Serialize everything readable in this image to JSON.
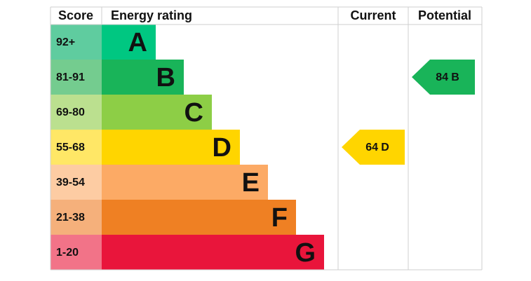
{
  "header": {
    "score": "Score",
    "rating": "Energy rating",
    "current": "Current",
    "potential": "Potential"
  },
  "rows": [
    {
      "score": "92+",
      "band": "A",
      "color": "#00c781",
      "light": "#5fcc9f"
    },
    {
      "score": "81-91",
      "band": "B",
      "color": "#19b459",
      "light": "#74cc8f"
    },
    {
      "score": "69-80",
      "band": "C",
      "color": "#8dce46",
      "light": "#bbe08f"
    },
    {
      "score": "55-68",
      "band": "D",
      "color": "#ffd500",
      "light": "#ffe766"
    },
    {
      "score": "39-54",
      "band": "E",
      "color": "#fcaa65",
      "light": "#fdcca3"
    },
    {
      "score": "21-38",
      "band": "F",
      "color": "#ef8023",
      "light": "#f5b07b"
    },
    {
      "score": "1-20",
      "band": "G",
      "color": "#e9153b",
      "light": "#f27388"
    }
  ],
  "current": {
    "value": 64,
    "band": "D"
  },
  "potential": {
    "value": 84,
    "band": "B"
  }
}
